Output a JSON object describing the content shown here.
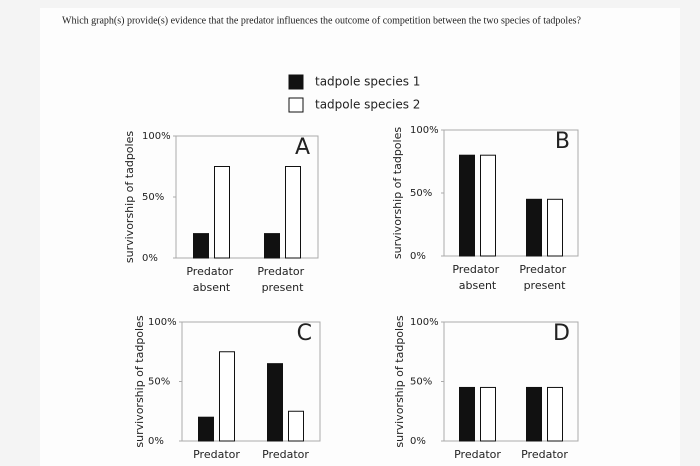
{
  "question": "Which graph(s) provide(s) evidence that the predator influences the outcome of competition between the two species of tadpoles?",
  "legend": [
    {
      "name": "tadpole species 1",
      "color": "#111111"
    },
    {
      "name": "tadpole species 2",
      "color": "#ffffff"
    }
  ],
  "chart_data": [
    {
      "type": "bar",
      "title": "A",
      "ylabel": "survivorship of tadpoles",
      "categories": [
        "Predator absent",
        "Predator present"
      ],
      "series": [
        {
          "color": "#111111",
          "values": [
            20,
            20
          ]
        },
        {
          "color": "#ffffff",
          "values": [
            75,
            75
          ]
        }
      ],
      "ylim": [
        0,
        100
      ],
      "yticks": [
        {
          "value": 0,
          "label": "0%"
        },
        {
          "value": 50,
          "label": "50%"
        },
        {
          "value": 100,
          "label": "100%"
        }
      ]
    },
    {
      "type": "bar",
      "title": "B",
      "ylabel": "survivorship of tadpoles",
      "categories": [
        "Predator absent",
        "Predator present"
      ],
      "series": [
        {
          "color": "#111111",
          "values": [
            80,
            45
          ]
        },
        {
          "color": "#ffffff",
          "values": [
            80,
            45
          ]
        }
      ],
      "ylim": [
        0,
        100
      ],
      "yticks": [
        {
          "value": 0,
          "label": "0%"
        },
        {
          "value": 50,
          "label": "50%"
        },
        {
          "value": 100,
          "label": "100%"
        }
      ]
    },
    {
      "type": "bar",
      "title": "C",
      "ylabel": "survivorship of tadpoles",
      "categories": [
        "Predator",
        "Predator"
      ],
      "series": [
        {
          "color": "#111111",
          "values": [
            20,
            65
          ]
        },
        {
          "color": "#ffffff",
          "values": [
            75,
            25
          ]
        }
      ],
      "ylim": [
        0,
        100
      ],
      "yticks": [
        {
          "value": 0,
          "label": "0%"
        },
        {
          "value": 50,
          "label": "50%"
        },
        {
          "value": 100,
          "label": "100%"
        }
      ]
    },
    {
      "type": "bar",
      "title": "D",
      "ylabel": "survivorship of tadpoles",
      "categories": [
        "Predator",
        "Predator"
      ],
      "series": [
        {
          "color": "#111111",
          "values": [
            45,
            45
          ]
        },
        {
          "color": "#ffffff",
          "values": [
            45,
            45
          ]
        }
      ],
      "ylim": [
        0,
        100
      ],
      "yticks": [
        {
          "value": 0,
          "label": "0%"
        },
        {
          "value": 50,
          "label": "50%"
        },
        {
          "value": 100,
          "label": "100%"
        }
      ]
    }
  ]
}
